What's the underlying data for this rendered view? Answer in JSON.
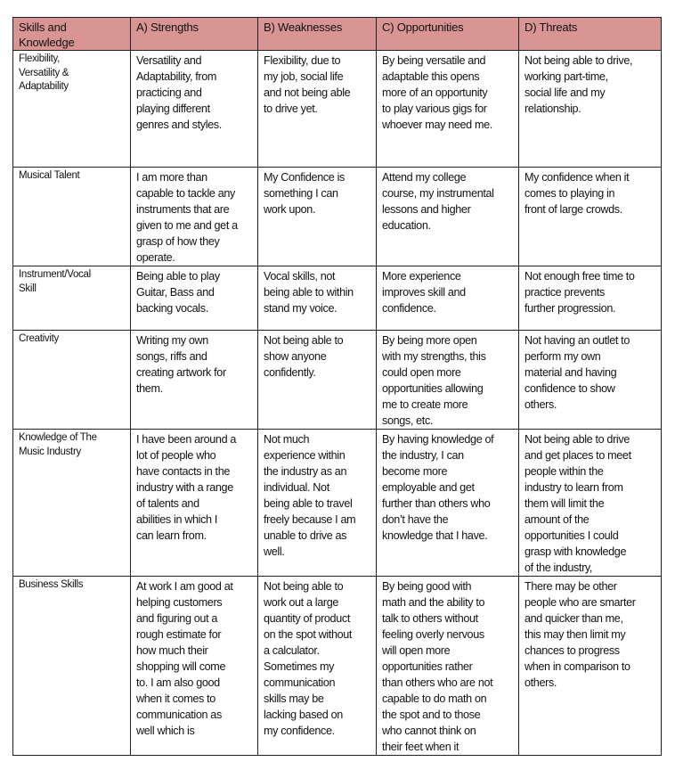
{
  "header": [
    "Skills and\nKnowledge",
    "A) Strengths",
    "B) Weaknesses",
    "C) Opportunities",
    "D) Threats"
  ],
  "header_color": "#d99594",
  "rows": [
    {
      "skill": "Flexibility,\nVersatility &\nAdaptability",
      "cells": [
        "Versatility and\nAdaptability, from\npracticing and\nplaying different\ngenres and styles.",
        "Flexibility, due to\nmy job, social life\nand not being able\nto drive yet.",
        "By being versatile and\nadaptable this opens\nmore of an opportunity\nto play various gigs for\nwhoever may need me.",
        "Not being able to drive,\nworking part-time,\nsocial life and my\nrelationship."
      ]
    },
    {
      "skill": "Musical Talent",
      "cells": [
        "I am more than\ncapable to tackle any\ninstruments that are\ngiven to me and get a\ngrasp of how they\noperate.",
        "My Confidence is\nsomething I can\nwork upon.",
        "Attend my college\ncourse, my instrumental\nlessons and higher\neducation.",
        "My confidence when it\ncomes to playing in\nfront of large crowds."
      ]
    },
    {
      "skill": "Instrument/Vocal\nSkill",
      "cells": [
        "Being able to play\nGuitar, Bass and\nbacking vocals.",
        "Vocal skills, not\nbeing able to within\nstand my voice.",
        "More experience\nimproves skill and\nconfidence.",
        "Not enough free time to\npractice prevents\nfurther progression."
      ]
    },
    {
      "skill": "Creativity",
      "cells": [
        "Writing my own\nsongs, riffs and\ncreating artwork for\nthem.",
        "Not being able to\nshow anyone\nconfidently.",
        "By being more open\nwith my strengths, this\ncould open more\nopportunities allowing\nme to create more\nsongs, etc.",
        "Not having an outlet to\nperform my own\nmaterial and having\nconfidence to show\nothers."
      ]
    },
    {
      "skill": "Knowledge of The\nMusic Industry",
      "cells": [
        "I have been around a\nlot of people who\nhave contacts in the\nindustry with a range\nof talents and\nabilities in which I\ncan learn from.",
        "Not much\nexperience within\nthe industry as an\nindividual. Not\nbeing able to travel\nfreely because I am\nunable to drive as\nwell.",
        "By having knowledge of\nthe industry, I can\nbecome more\nemployable and get\nfurther than others who\ndon’t have the\nknowledge that I have.",
        "Not being able to drive\nand get places to meet\npeople within the\nindustry to learn from\nthem will limit the\namount of the\nopportunities I could\ngrasp with knowledge\nof the industry,"
      ]
    },
    {
      "skill": "Business Skills",
      "cells": [
        "At work I am good at\nhelping customers\nand figuring out a\nrough estimate for\nhow much their\nshopping will come\nto. I am also good\nwhen it comes to\ncommunication as\nwell which is",
        "Not being able to\nwork out a large\nquantity of product\non the spot without\na calculator.\nSometimes my\ncommunication\nskills may be\nlacking based on\nmy confidence.",
        "By being good with\nmath and the ability to\ntalk to others without\nfeeling overly nervous\nwill open more\nopportunities rather\nthan others who are not\ncapable to do math on\nthe spot and to those\nwho cannot think on\ntheir feet when it",
        "There may be other\npeople who are smarter\nand quicker than me,\nthis may then limit my\nchances to progress\nwhen in comparison to\nothers."
      ]
    }
  ]
}
